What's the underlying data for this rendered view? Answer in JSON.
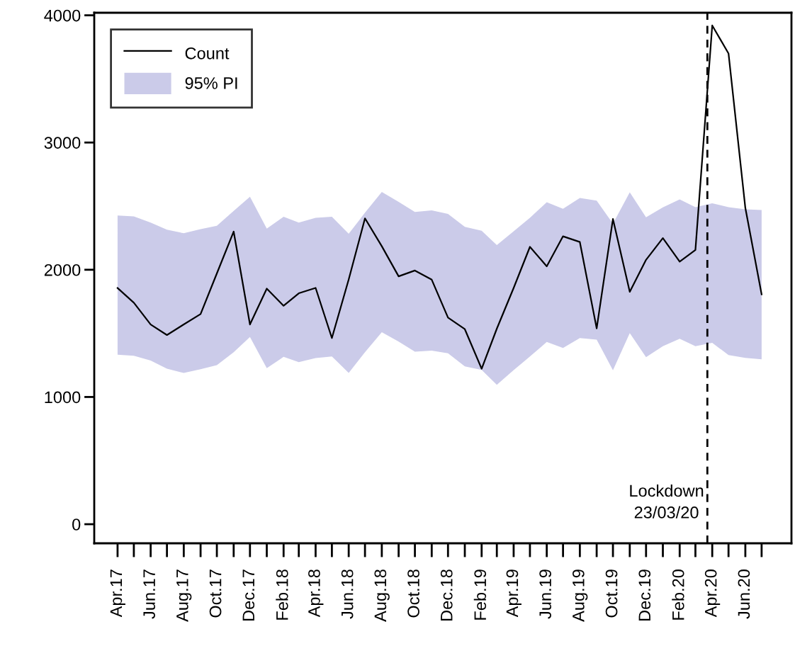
{
  "chart_data": {
    "type": "line",
    "x": [
      "2017-04",
      "2017-05",
      "2017-06",
      "2017-07",
      "2017-08",
      "2017-09",
      "2017-10",
      "2017-11",
      "2017-12",
      "2018-01",
      "2018-02",
      "2018-03",
      "2018-04",
      "2018-05",
      "2018-06",
      "2018-07",
      "2018-08",
      "2018-09",
      "2018-10",
      "2018-11",
      "2018-12",
      "2019-01",
      "2019-02",
      "2019-03",
      "2019-04",
      "2019-05",
      "2019-06",
      "2019-07",
      "2019-08",
      "2019-09",
      "2019-10",
      "2019-11",
      "2019-12",
      "2020-01",
      "2020-02",
      "2020-03",
      "2020-04",
      "2020-05",
      "2020-06",
      "2020-07"
    ],
    "series": [
      {
        "name": "Count",
        "color": "#000000",
        "values": [
          1856,
          1741,
          1570,
          1487,
          1570,
          1652,
          1971,
          2300,
          1570,
          1852,
          1717,
          1815,
          1857,
          1463,
          1924,
          2404,
          2185,
          1948,
          1994,
          1922,
          1624,
          1533,
          1222,
          1537,
          1857,
          2180,
          2027,
          2263,
          2218,
          1539,
          2399,
          1827,
          2078,
          2249,
          2064,
          2156,
          3920,
          3700,
          2486,
          1807
        ]
      },
      {
        "name": "95% PI",
        "type": "area",
        "color": "#cbcbe9",
        "values": [
          null,
          null,
          null,
          null,
          null,
          null,
          null,
          null,
          null,
          null,
          null,
          null,
          null,
          null,
          null,
          null,
          null,
          null,
          null,
          null,
          null,
          null,
          null,
          null,
          null,
          null,
          null,
          null,
          null,
          null,
          null,
          null,
          null,
          null,
          null,
          null,
          null,
          null,
          null,
          null
        ],
        "upper": [
          2426,
          2420,
          2370,
          2315,
          2287,
          2319,
          2346,
          2463,
          2574,
          2324,
          2417,
          2370,
          2408,
          2417,
          2283,
          2448,
          2611,
          2533,
          2454,
          2467,
          2439,
          2337,
          2306,
          2194,
          2302,
          2408,
          2531,
          2479,
          2564,
          2543,
          2362,
          2609,
          2412,
          2490,
          2553,
          2492,
          2523,
          2492,
          2475,
          2469
        ],
        "lower": [
          1333,
          1324,
          1287,
          1222,
          1189,
          1218,
          1250,
          1352,
          1472,
          1226,
          1315,
          1274,
          1306,
          1319,
          1189,
          1352,
          1509,
          1435,
          1356,
          1365,
          1343,
          1241,
          1213,
          1096,
          1211,
          1318,
          1432,
          1385,
          1463,
          1451,
          1210,
          1502,
          1313,
          1399,
          1457,
          1399,
          1426,
          1329,
          1307,
          1296
        ]
      }
    ],
    "xlim": [
      "2017-02-17",
      "2020-08-25"
    ],
    "xticks": [
      {
        "value": "2017-04",
        "label": "Apr.17"
      },
      {
        "value": "2017-06",
        "label": "Jun.17"
      },
      {
        "value": "2017-08",
        "label": "Aug.17"
      },
      {
        "value": "2017-10",
        "label": "Oct.17"
      },
      {
        "value": "2017-12",
        "label": "Dec.17"
      },
      {
        "value": "2018-02",
        "label": "Feb.18"
      },
      {
        "value": "2018-04",
        "label": "Apr.18"
      },
      {
        "value": "2018-06",
        "label": "Jun.18"
      },
      {
        "value": "2018-08",
        "label": "Aug.18"
      },
      {
        "value": "2018-10",
        "label": "Oct.18"
      },
      {
        "value": "2018-12",
        "label": "Dec.18"
      },
      {
        "value": "2019-02",
        "label": "Feb.19"
      },
      {
        "value": "2019-04",
        "label": "Apr.19"
      },
      {
        "value": "2019-06",
        "label": "Jun.19"
      },
      {
        "value": "2019-08",
        "label": "Aug.19"
      },
      {
        "value": "2019-10",
        "label": "Oct.19"
      },
      {
        "value": "2019-12",
        "label": "Dec.19"
      },
      {
        "value": "2020-02",
        "label": "Feb.20"
      },
      {
        "value": "2020-04",
        "label": "Apr.20"
      },
      {
        "value": "2020-06",
        "label": "Jun.20"
      }
    ],
    "ylim": [
      -150,
      4020
    ],
    "yticks": [
      0,
      1000,
      2000,
      3000,
      4000
    ],
    "ref_lines": [
      {
        "axis": "x",
        "value": "2020-03-23",
        "label": "Lockdown\n23/03/20",
        "color": "#000000",
        "line_style": "dashed"
      }
    ],
    "legend": "top left",
    "grid": false,
    "line_style": "solid",
    "marker": "none"
  }
}
